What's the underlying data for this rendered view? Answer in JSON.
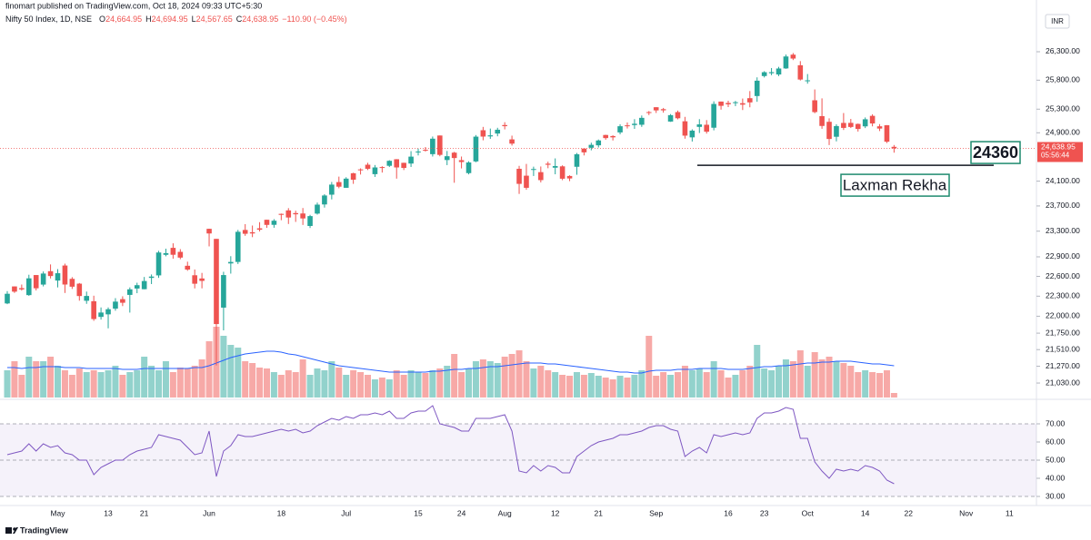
{
  "chart_data": {
    "type": "candlestick",
    "publisher": "finomart published on TradingView.com, Oct 18, 2024 09:33 UTC+5:30",
    "symbol": "Nifty 50 Index, 1D, NSE",
    "legend_keys": [
      "O",
      "H",
      "L",
      "C"
    ],
    "legend_values": [
      {
        "value": 24664.95,
        "label": "24,664.95"
      },
      {
        "value": 24694.95,
        "label": "24,694.95"
      },
      {
        "value": 24567.65,
        "label": "24,567.65"
      },
      {
        "value": 24638.95,
        "label": "24,638.95"
      }
    ],
    "change": "−110.90 (−0.45%)",
    "currency": "INR",
    "brand": "TradingView",
    "up_color": "#26a69a",
    "down_color": "#ef5350",
    "volume_ma_color": "#2962ff",
    "rsi_color": "#7e57c2",
    "log_scale": true,
    "ylim": [
      20800,
      27035
    ],
    "yticks": [
      {
        "value": 26300,
        "label": "26,300.00"
      },
      {
        "value": 25800,
        "label": "25,800.00"
      },
      {
        "value": 25300,
        "label": "25,300.00"
      },
      {
        "value": 24900,
        "label": "24,900.00"
      },
      {
        "value": 24100,
        "label": "24,100.00"
      },
      {
        "value": 23700,
        "label": "23,700.00"
      },
      {
        "value": 23300,
        "label": "23,300.00"
      },
      {
        "value": 22900,
        "label": "22,900.00"
      },
      {
        "value": 22600,
        "label": "22,600.00"
      },
      {
        "value": 22300,
        "label": "22,300.00"
      },
      {
        "value": 22000,
        "label": "22,000.00"
      },
      {
        "value": 21750,
        "label": "21,750.00"
      },
      {
        "value": 21510,
        "label": "21,510.00"
      },
      {
        "value": 21270,
        "label": "21,270.00"
      },
      {
        "value": 21030,
        "label": "21,030.00"
      }
    ],
    "last_price": {
      "value": 24638.95,
      "label": "24,638.95"
    },
    "countdown": "05:56:44",
    "level": 24360,
    "level_note": "Laxman Rekha",
    "volume_lim": [
      0,
      400
    ],
    "rsi_ylim": [
      26,
      83.5
    ],
    "rsi_yticks": [
      {
        "value": 70,
        "label": "70.00"
      },
      {
        "value": 60,
        "label": "60.00"
      },
      {
        "value": 50,
        "label": "50.00"
      },
      {
        "value": 40,
        "label": "40.00"
      },
      {
        "value": 30,
        "label": "30.00"
      }
    ],
    "categories": [
      null,
      null,
      null,
      null,
      null,
      null,
      null,
      "May",
      null,
      null,
      null,
      null,
      null,
      null,
      "13",
      null,
      null,
      null,
      null,
      "21",
      null,
      null,
      null,
      null,
      null,
      null,
      null,
      null,
      "Jun",
      null,
      null,
      null,
      null,
      null,
      null,
      null,
      null,
      null,
      "18",
      null,
      null,
      null,
      null,
      null,
      null,
      null,
      null,
      "Jul",
      null,
      null,
      null,
      null,
      null,
      null,
      null,
      null,
      null,
      "15",
      null,
      null,
      null,
      null,
      null,
      "24",
      null,
      null,
      null,
      null,
      null,
      "Aug",
      null,
      null,
      null,
      null,
      null,
      null,
      "12",
      null,
      null,
      null,
      null,
      null,
      "21",
      null,
      null,
      null,
      null,
      null,
      null,
      null,
      "Sep",
      null,
      null,
      null,
      null,
      null,
      null,
      null,
      null,
      null,
      "16",
      null,
      null,
      null,
      null,
      "23",
      null,
      null,
      null,
      null,
      null,
      "Oct",
      null,
      null,
      null,
      null,
      null,
      null,
      null,
      "14",
      null,
      null,
      null,
      null,
      null,
      "22",
      null,
      null,
      null,
      null,
      null,
      null,
      null,
      "Nov",
      null,
      null,
      null,
      null,
      null,
      "11"
    ],
    "ohlc": [
      [
        22191,
        22376,
        22180,
        22336
      ],
      [
        22447,
        22447,
        22349,
        22368
      ],
      [
        22421,
        22476,
        22384,
        22402
      ],
      [
        22316,
        22625,
        22305,
        22570
      ],
      [
        22620,
        22620,
        22386,
        22419
      ],
      [
        22475,
        22675,
        22447,
        22643
      ],
      [
        22679,
        22783,
        22568,
        22605
      ],
      [
        22536,
        22711,
        22432,
        22648
      ],
      [
        22766,
        22795,
        22348,
        22476
      ],
      [
        22562,
        22588,
        22409,
        22443
      ],
      [
        22489,
        22499,
        22232,
        22302
      ],
      [
        22231,
        22369,
        22185,
        22303
      ],
      [
        22224,
        22307,
        21932,
        21958
      ],
      [
        21990,
        22131,
        21950,
        22055
      ],
      [
        22028,
        22131,
        21821,
        22104
      ],
      [
        22113,
        22270,
        22082,
        22218
      ],
      [
        22255,
        22298,
        22151,
        22201
      ],
      [
        22319,
        22432,
        22054,
        22403
      ],
      [
        22415,
        22503,
        22345,
        22466
      ],
      [
        22405,
        22591,
        22404,
        22529
      ],
      [
        22577,
        22629,
        22483,
        22597
      ],
      [
        22615,
        22993,
        22577,
        22967
      ],
      [
        22931,
        23026,
        22908,
        22957
      ],
      [
        23039,
        23110,
        22871,
        22932
      ],
      [
        22977,
        23019,
        22863,
        22888
      ],
      [
        22762,
        22825,
        22685,
        22704
      ],
      [
        22617,
        22705,
        22417,
        22488
      ],
      [
        22568,
        22653,
        22418,
        22531
      ],
      [
        23337,
        23339,
        23062,
        23264
      ],
      [
        23179,
        23179,
        21281,
        21884
      ],
      [
        22128,
        22670,
        21791,
        22620
      ],
      [
        22798,
        22910,
        22642,
        22821
      ],
      [
        22821,
        23320,
        22789,
        23290
      ],
      [
        23319,
        23411,
        23227,
        23259
      ],
      [
        23283,
        23389,
        23206,
        23264
      ],
      [
        23345,
        23442,
        23295,
        23323
      ],
      [
        23480,
        23481,
        23353,
        23399
      ],
      [
        23400,
        23490,
        23354,
        23465
      ],
      [
        23574,
        23579,
        23473,
        23558
      ],
      [
        23629,
        23665,
        23413,
        23516
      ],
      [
        23586,
        23624,
        23446,
        23567
      ],
      [
        23580,
        23667,
        23398,
        23501
      ],
      [
        23382,
        23558,
        23350,
        23538
      ],
      [
        23578,
        23754,
        23562,
        23721
      ],
      [
        23724,
        23889,
        23674,
        23868
      ],
      [
        23881,
        24087,
        23805,
        24044
      ],
      [
        24085,
        24174,
        23985,
        24010
      ],
      [
        23992,
        24164,
        23992,
        24141
      ],
      [
        24229,
        24237,
        24056,
        24124
      ],
      [
        24292,
        24309,
        24208,
        24286
      ],
      [
        24369,
        24401,
        24281,
        24302
      ],
      [
        24214,
        24364,
        24169,
        24324
      ],
      [
        24330,
        24344,
        24240,
        24320
      ],
      [
        24351,
        24443,
        24331,
        24433
      ],
      [
        24459,
        24461,
        24141,
        24324
      ],
      [
        24400,
        24402,
        24281,
        24316
      ],
      [
        24388,
        24593,
        24332,
        24502
      ],
      [
        24573,
        24636,
        24522,
        24587
      ],
      [
        24615,
        24661,
        24587,
        24613
      ],
      [
        24543,
        24837,
        24504,
        24801
      ],
      [
        24854,
        24855,
        24508,
        24531
      ],
      [
        24446,
        24596,
        24362,
        24509
      ],
      [
        24568,
        24582,
        24074,
        24479
      ],
      [
        24444,
        24504,
        24308,
        24413
      ],
      [
        24231,
        24426,
        24211,
        24406
      ],
      [
        24423,
        24862,
        24410,
        24835
      ],
      [
        24943,
        24999,
        24774,
        24836
      ],
      [
        24839,
        24971,
        24798,
        24857
      ],
      [
        24887,
        24984,
        24841,
        24951
      ],
      [
        25030,
        25078,
        24957,
        25011
      ],
      [
        24789,
        24852,
        24686,
        24718
      ],
      [
        24302,
        24350,
        23893,
        24056
      ],
      [
        24189,
        24382,
        23960,
        23992
      ],
      [
        24289,
        24337,
        24184,
        24298
      ],
      [
        24247,
        24340,
        24079,
        24117
      ],
      [
        24386,
        24419,
        24311,
        24368
      ],
      [
        24320,
        24473,
        24212,
        24347
      ],
      [
        24342,
        24359,
        24116,
        24140
      ],
      [
        24184,
        24196,
        24100,
        24144
      ],
      [
        24335,
        24563,
        24204,
        24541
      ],
      [
        24636,
        24638,
        24522,
        24573
      ],
      [
        24649,
        24734,
        24607,
        24698
      ],
      [
        24690,
        24787,
        24654,
        24771
      ],
      [
        24863,
        24867,
        24784,
        24811
      ],
      [
        24845,
        24858,
        24771,
        24823
      ],
      [
        24906,
        25043,
        24874,
        25010
      ],
      [
        25025,
        25074,
        24972,
        25017
      ],
      [
        25030,
        25130,
        24965,
        25052
      ],
      [
        25035,
        25192,
        24999,
        25152
      ],
      [
        25250,
        25268,
        25199,
        25236
      ],
      [
        25333,
        25334,
        25235,
        25279
      ],
      [
        25300,
        25321,
        25240,
        25280
      ],
      [
        25089,
        25216,
        25084,
        25198
      ],
      [
        25250,
        25276,
        25127,
        25145
      ],
      [
        25094,
        25169,
        24801,
        24852
      ],
      [
        24823,
        24958,
        24753,
        24936
      ],
      [
        24999,
        25130,
        24896,
        25041
      ],
      [
        25035,
        25114,
        24886,
        24918
      ],
      [
        24985,
        25434,
        24941,
        25389
      ],
      [
        25430,
        25430,
        25292,
        25357
      ],
      [
        25406,
        25445,
        25336,
        25383
      ],
      [
        25416,
        25441,
        25352,
        25419
      ],
      [
        25402,
        25482,
        25285,
        25377
      ],
      [
        25488,
        25611,
        25332,
        25416
      ],
      [
        25525,
        25849,
        25426,
        25791
      ],
      [
        25872,
        25957,
        25847,
        25939
      ],
      [
        25921,
        26012,
        25886,
        25940
      ],
      [
        25899,
        26033,
        25871,
        26004
      ],
      [
        26005,
        26250,
        25998,
        26216
      ],
      [
        26248,
        26277,
        26152,
        26179
      ],
      [
        26061,
        26134,
        25794,
        25811
      ],
      [
        25788,
        25907,
        25739,
        25797
      ],
      [
        25452,
        25639,
        25230,
        25250
      ],
      [
        25181,
        25485,
        24967,
        25015
      ],
      [
        25085,
        25144,
        24694,
        24796
      ],
      [
        24833,
        25044,
        24756,
        25013
      ],
      [
        25066,
        25234,
        24947,
        24982
      ],
      [
        25067,
        25134,
        24980,
        24998
      ],
      [
        25049,
        25056,
        24920,
        24964
      ],
      [
        25008,
        25159,
        24979,
        25128
      ],
      [
        25186,
        25212,
        25008,
        25057
      ],
      [
        25009,
        25046,
        24929,
        24971
      ],
      [
        25027,
        25029,
        24728,
        24750
      ],
      [
        24664.95,
        24694.95,
        24567.65,
        24638.95
      ],
      null,
      null,
      null,
      null,
      null,
      null,
      null,
      null,
      null,
      null,
      null,
      null,
      null,
      null,
      null,
      null
    ],
    "volume": [
      30,
      40,
      25,
      45,
      40,
      40,
      45,
      35,
      30,
      25,
      32,
      28,
      30,
      28,
      30,
      35,
      25,
      28,
      30,
      45,
      35,
      30,
      40,
      28,
      33,
      32,
      35,
      42,
      62,
      78,
      68,
      58,
      55,
      40,
      38,
      33,
      32,
      28,
      25,
      30,
      28,
      42,
      25,
      32,
      30,
      40,
      33,
      25,
      30,
      28,
      25,
      20,
      22,
      20,
      30,
      25,
      30,
      28,
      27,
      30,
      32,
      35,
      48,
      28,
      32,
      40,
      42,
      40,
      38,
      45,
      48,
      52,
      40,
      32,
      35,
      30,
      28,
      25,
      24,
      28,
      25,
      27,
      24,
      22,
      20,
      24,
      22,
      25,
      30,
      68,
      24,
      28,
      25,
      28,
      35,
      30,
      32,
      28,
      40,
      30,
      22,
      25,
      30,
      35,
      58,
      32,
      30,
      35,
      42,
      40,
      52,
      35,
      50,
      42,
      45,
      40,
      38,
      35,
      28,
      30,
      28,
      27,
      30,
      5,
      null,
      null,
      null,
      null,
      null,
      null,
      null,
      null,
      null,
      null,
      null,
      null,
      null,
      null,
      null,
      null
    ],
    "volume_ma": [
      33,
      33,
      32,
      33,
      33,
      34,
      34,
      34,
      33,
      33,
      33,
      32,
      32,
      32,
      32,
      32,
      31,
      31,
      31,
      32,
      32,
      32,
      32,
      32,
      32,
      32,
      33,
      33,
      35,
      38,
      41,
      44,
      46,
      48,
      49,
      50,
      51,
      51,
      50,
      48,
      47,
      45,
      43,
      41,
      39,
      37,
      35,
      34,
      33,
      32,
      31,
      30,
      29,
      28,
      28,
      28,
      28,
      28,
      28,
      29,
      29,
      30,
      31,
      31,
      32,
      32,
      33,
      34,
      34,
      35,
      36,
      37,
      38,
      38,
      38,
      37,
      37,
      36,
      35,
      34,
      33,
      32,
      31,
      30,
      29,
      28,
      28,
      27,
      27,
      29,
      30,
      30,
      30,
      31,
      31,
      31,
      32,
      32,
      32,
      32,
      31,
      31,
      31,
      32,
      33,
      34,
      34,
      35,
      35,
      36,
      37,
      38,
      38,
      39,
      39,
      40,
      40,
      40,
      39,
      38,
      37,
      37,
      36,
      35,
      null,
      null,
      null,
      null,
      null,
      null,
      null,
      null,
      null,
      null,
      null,
      null,
      null,
      null,
      null,
      null
    ],
    "rsi": [
      53,
      54,
      55,
      59,
      55,
      59,
      57,
      58,
      54,
      53,
      50,
      50,
      42,
      46,
      48,
      50,
      50,
      53,
      55,
      56,
      57,
      64,
      63,
      62,
      61,
      57,
      53,
      54,
      66,
      41,
      55,
      58,
      64,
      63,
      63,
      64,
      65,
      66,
      67,
      66,
      67,
      65,
      66,
      69,
      71,
      73,
      72,
      74,
      73,
      75,
      75,
      76,
      75,
      77,
      73,
      73,
      76,
      77,
      77,
      80,
      70,
      69,
      68,
      66,
      66,
      73,
      73,
      73,
      74,
      75,
      66,
      44,
      43,
      47,
      44,
      47,
      46,
      43,
      43,
      52,
      55,
      58,
      60,
      61,
      62,
      64,
      64,
      65,
      66,
      68,
      69,
      69,
      67,
      66,
      52,
      55,
      57,
      54,
      64,
      63,
      64,
      65,
      64,
      65,
      73,
      76,
      76,
      77,
      79,
      78,
      62,
      62,
      49,
      44,
      40,
      45,
      44,
      45,
      44,
      47,
      46,
      44,
      39,
      37,
      null,
      null,
      null,
      null,
      null,
      null,
      null,
      null,
      null,
      null,
      null,
      null,
      null,
      null,
      null,
      null
    ]
  }
}
